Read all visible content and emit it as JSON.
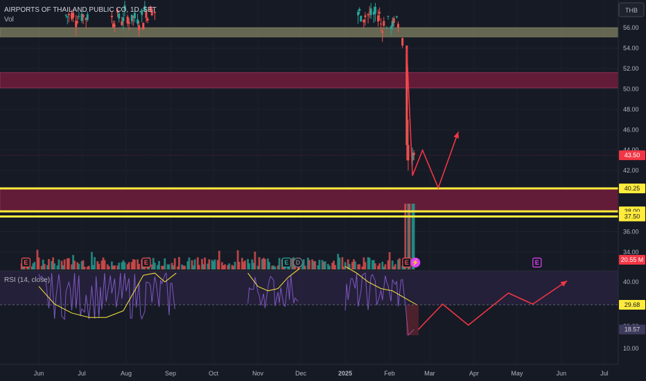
{
  "header": {
    "title": "AIRPORTS OF THAILAND PUBLIC CO, 1D, SET",
    "volume_label": "Vol",
    "currency": "THB"
  },
  "colors": {
    "background": "#161a25",
    "up": "#26a69a",
    "down": "#ef5350",
    "zone_gray": "#75755a",
    "zone_red": "#6b1d3a",
    "zone_red_border": "#b03a6a",
    "yellow_line": "#ffeb3b",
    "arrow": "#f23645",
    "rsi_line": "#7e57c2",
    "rsi_ma": "#ffeb3b",
    "rsi_band": "#2a2340",
    "last_price_tag": "#f23645",
    "rsi_tag": "#3d3a5c",
    "event_earnings": "#ef5350",
    "event_earnings_future": "#e040fb",
    "event_earnings_green": "#26a69a"
  },
  "chart_data": [
    {
      "type": "candlestick",
      "title": "AIRPORTS OF THAILAND PUBLIC CO, 1D, SET",
      "ylim": [
        33,
        57
      ],
      "y_ticks": [
        34,
        36,
        38,
        40,
        42,
        44,
        46,
        48,
        50,
        52,
        54,
        56
      ],
      "x_tick_labels": [
        "Jun",
        "Jul",
        "Aug",
        "Sep",
        "Oct",
        "Nov",
        "Dec",
        "2025",
        "Feb",
        "Mar",
        "Apr",
        "May",
        "Jun",
        "Jul"
      ],
      "price_tags": [
        {
          "label": "43.50",
          "value": 43.5,
          "kind": "last"
        },
        {
          "label": "40.25",
          "value": 40.25,
          "kind": "level"
        },
        {
          "label": "38.00",
          "value": 38.0,
          "kind": "level"
        },
        {
          "label": "37.50",
          "value": 37.5,
          "kind": "level"
        }
      ],
      "zones": [
        {
          "name": "gray-zone",
          "from": 55.1,
          "to": 56.0,
          "color": "gray"
        },
        {
          "name": "upper-red-zone",
          "from": 50.1,
          "to": 51.6,
          "color": "red"
        },
        {
          "name": "lower-red-zone",
          "from": 38.0,
          "to": 40.25,
          "color": "red"
        }
      ],
      "level_lines": [
        40.25,
        38.0,
        37.5
      ],
      "projection_path": [
        {
          "date": "2025-02-17",
          "price": 41.5
        },
        {
          "date": "2025-02-24",
          "price": 44.0
        },
        {
          "date": "2025-03-07",
          "price": 40.3
        },
        {
          "date": "2025-03-21",
          "price": 45.8
        }
      ],
      "last_candles": [
        {
          "date": "2025-02-10",
          "open": 55.0,
          "high": 55.0,
          "low": 54.0,
          "close": 54.25
        },
        {
          "date": "2025-02-13",
          "open": 54.25,
          "high": 54.25,
          "low": 43.0,
          "close": 44.5
        },
        {
          "date": "2025-02-14",
          "open": 44.5,
          "high": 47.0,
          "low": 42.0,
          "close": 43.0
        },
        {
          "date": "2025-02-17",
          "open": 43.0,
          "high": 44.25,
          "low": 42.5,
          "close": 43.75
        },
        {
          "date": "2025-02-18",
          "open": 43.75,
          "high": 44.0,
          "low": 43.0,
          "close": 43.5
        }
      ]
    },
    {
      "type": "bar",
      "title": "Vol",
      "value_label": "20.55 M",
      "events": [
        {
          "label": "E",
          "date": "2024-05-23",
          "kind": "earnings"
        },
        {
          "label": "E",
          "date": "2024-08-15",
          "kind": "earnings"
        },
        {
          "label": "E",
          "date": "2024-11-21",
          "kind": "earnings-green"
        },
        {
          "label": "D",
          "date": "2024-11-29",
          "kind": "dividend"
        },
        {
          "label": "E",
          "date": "2025-02-13",
          "kind": "earnings"
        },
        {
          "label": "⚡",
          "date": "2025-02-19",
          "kind": "split"
        },
        {
          "label": "E",
          "date": "2025-05-15",
          "kind": "earnings-future"
        }
      ]
    },
    {
      "type": "line",
      "title": "RSI (14, close)",
      "ylim": [
        5,
        45
      ],
      "y_ticks": [
        10,
        20,
        30,
        40
      ],
      "rsi_tags": [
        {
          "label": "29.68",
          "value": 29.68
        },
        {
          "label": "18.57",
          "value": 18.57
        }
      ],
      "projection_path": [
        {
          "date": "2025-02-21",
          "rsi": 18.5
        },
        {
          "date": "2025-03-10",
          "rsi": 30.0
        },
        {
          "date": "2025-03-28",
          "rsi": 20.5
        },
        {
          "date": "2025-04-25",
          "rsi": 35.0
        },
        {
          "date": "2025-05-12",
          "rsi": 30.0
        },
        {
          "date": "2025-06-05",
          "rsi": 40.5
        }
      ]
    }
  ]
}
